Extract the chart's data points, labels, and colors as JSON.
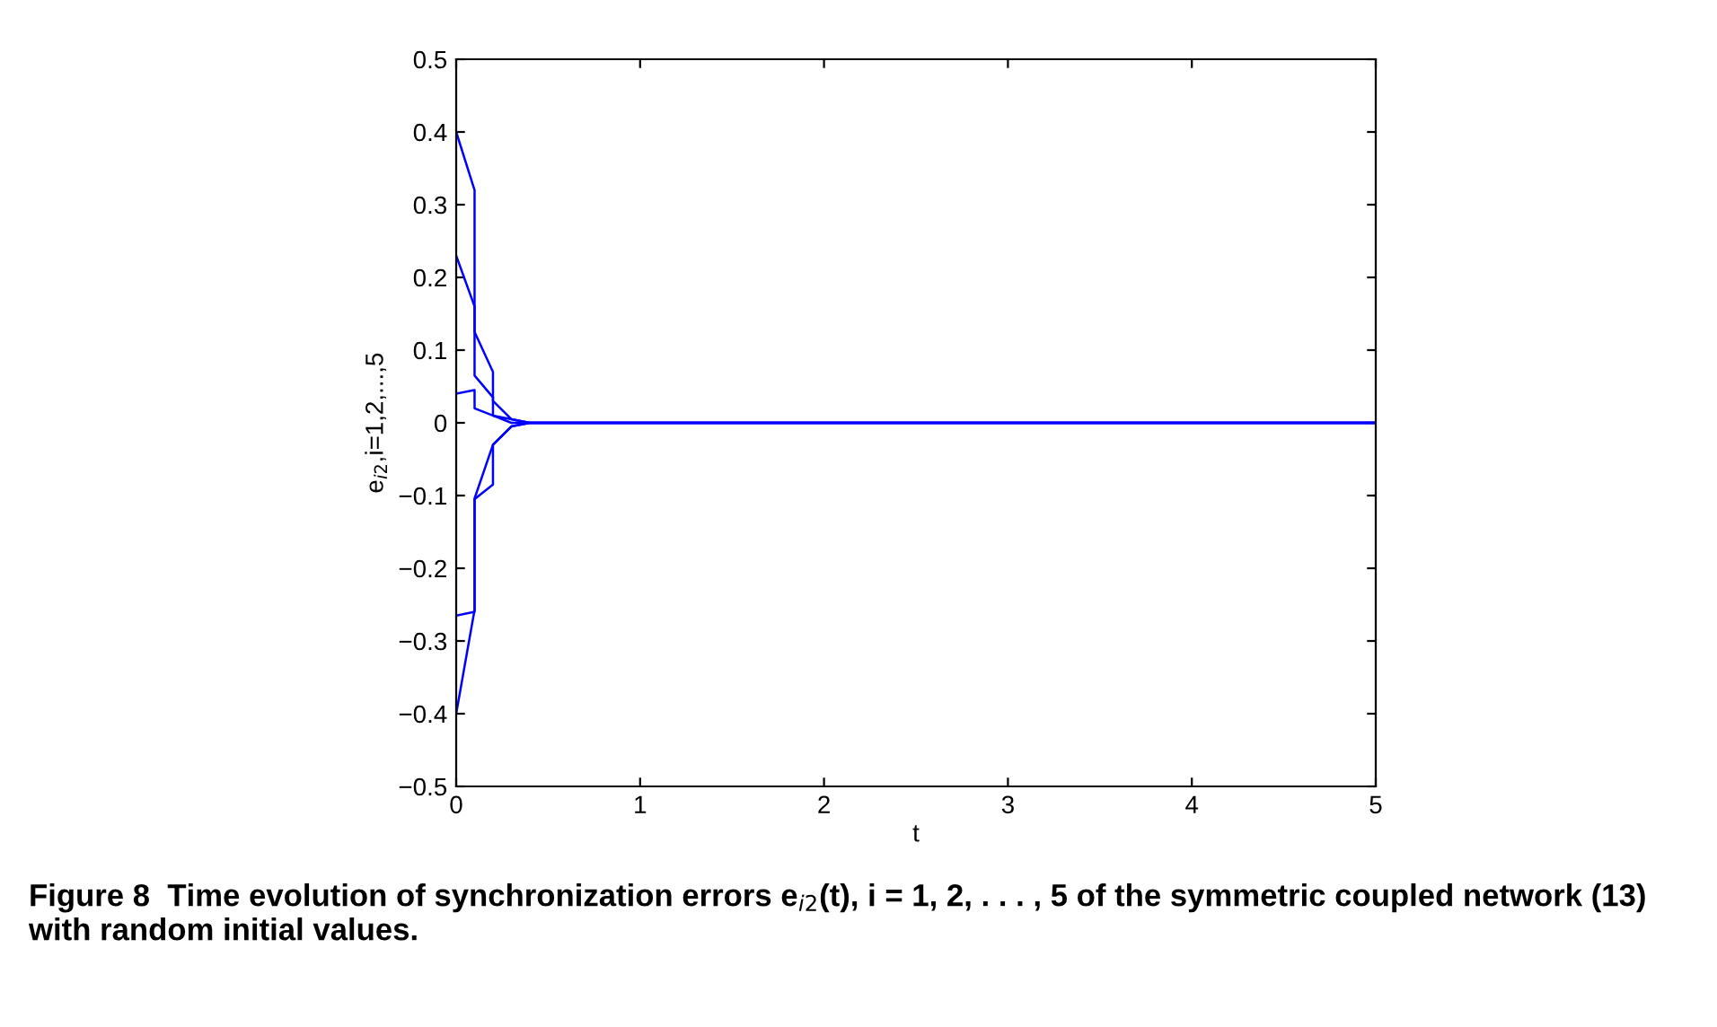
{
  "chart_data": {
    "type": "line",
    "xlabel": "t",
    "ylabel": "e$_{i2}$,i=1,2,...,5",
    "xlim": [
      0,
      5
    ],
    "xticks": [
      0,
      1,
      2,
      3,
      4,
      5
    ],
    "ylim": [
      -0.5,
      0.5
    ],
    "yticks": [
      {
        "value": -0.5,
        "label": "−0.5"
      },
      {
        "value": -0.4,
        "label": "−0.4"
      },
      {
        "value": -0.3,
        "label": "−0.3"
      },
      {
        "value": -0.2,
        "label": "−0.2"
      },
      {
        "value": -0.1,
        "label": "−0.1"
      },
      0,
      0.1,
      0.2,
      0.3,
      0.4,
      0.5
    ],
    "grid": false,
    "line_style": "solid",
    "marker": "none",
    "series": [
      {
        "color": "#0000ff",
        "x": [
          0,
          0.1,
          0.1,
          0.2,
          0.2,
          0.3,
          0.4,
          5
        ],
        "values": [
          0.4,
          0.32,
          0.065,
          0.035,
          0.01,
          0.005,
          0,
          0
        ]
      },
      {
        "color": "#0000ff",
        "x": [
          0,
          0.1,
          0.1,
          0.2,
          0.2,
          0.3,
          0.4,
          5
        ],
        "values": [
          0.23,
          0.16,
          0.125,
          0.07,
          0.03,
          0.005,
          0,
          0
        ]
      },
      {
        "color": "#0000ff",
        "x": [
          0,
          0.1,
          0.1,
          0.2,
          0.3,
          5
        ],
        "values": [
          0.04,
          0.045,
          0.02,
          0.01,
          0,
          0
        ]
      },
      {
        "color": "#0000ff",
        "x": [
          0,
          0.1,
          0.1,
          0.2,
          0.2,
          0.3,
          0.4,
          5
        ],
        "values": [
          -0.265,
          -0.26,
          -0.105,
          -0.085,
          -0.03,
          -0.005,
          0,
          0
        ]
      },
      {
        "color": "#0000ff",
        "x": [
          0,
          0.1,
          0.1,
          0.2,
          0.3,
          0.4,
          5
        ],
        "values": [
          -0.4,
          -0.257,
          -0.104,
          -0.03,
          -0.005,
          0,
          0
        ]
      }
    ],
    "annotations": [
      "Figure 8  Time evolution of synchronization errors e$_{i2}$(t), i = 1, 2, . . . , 5 of the symmetric coupled network (13) with random initial values."
    ]
  }
}
